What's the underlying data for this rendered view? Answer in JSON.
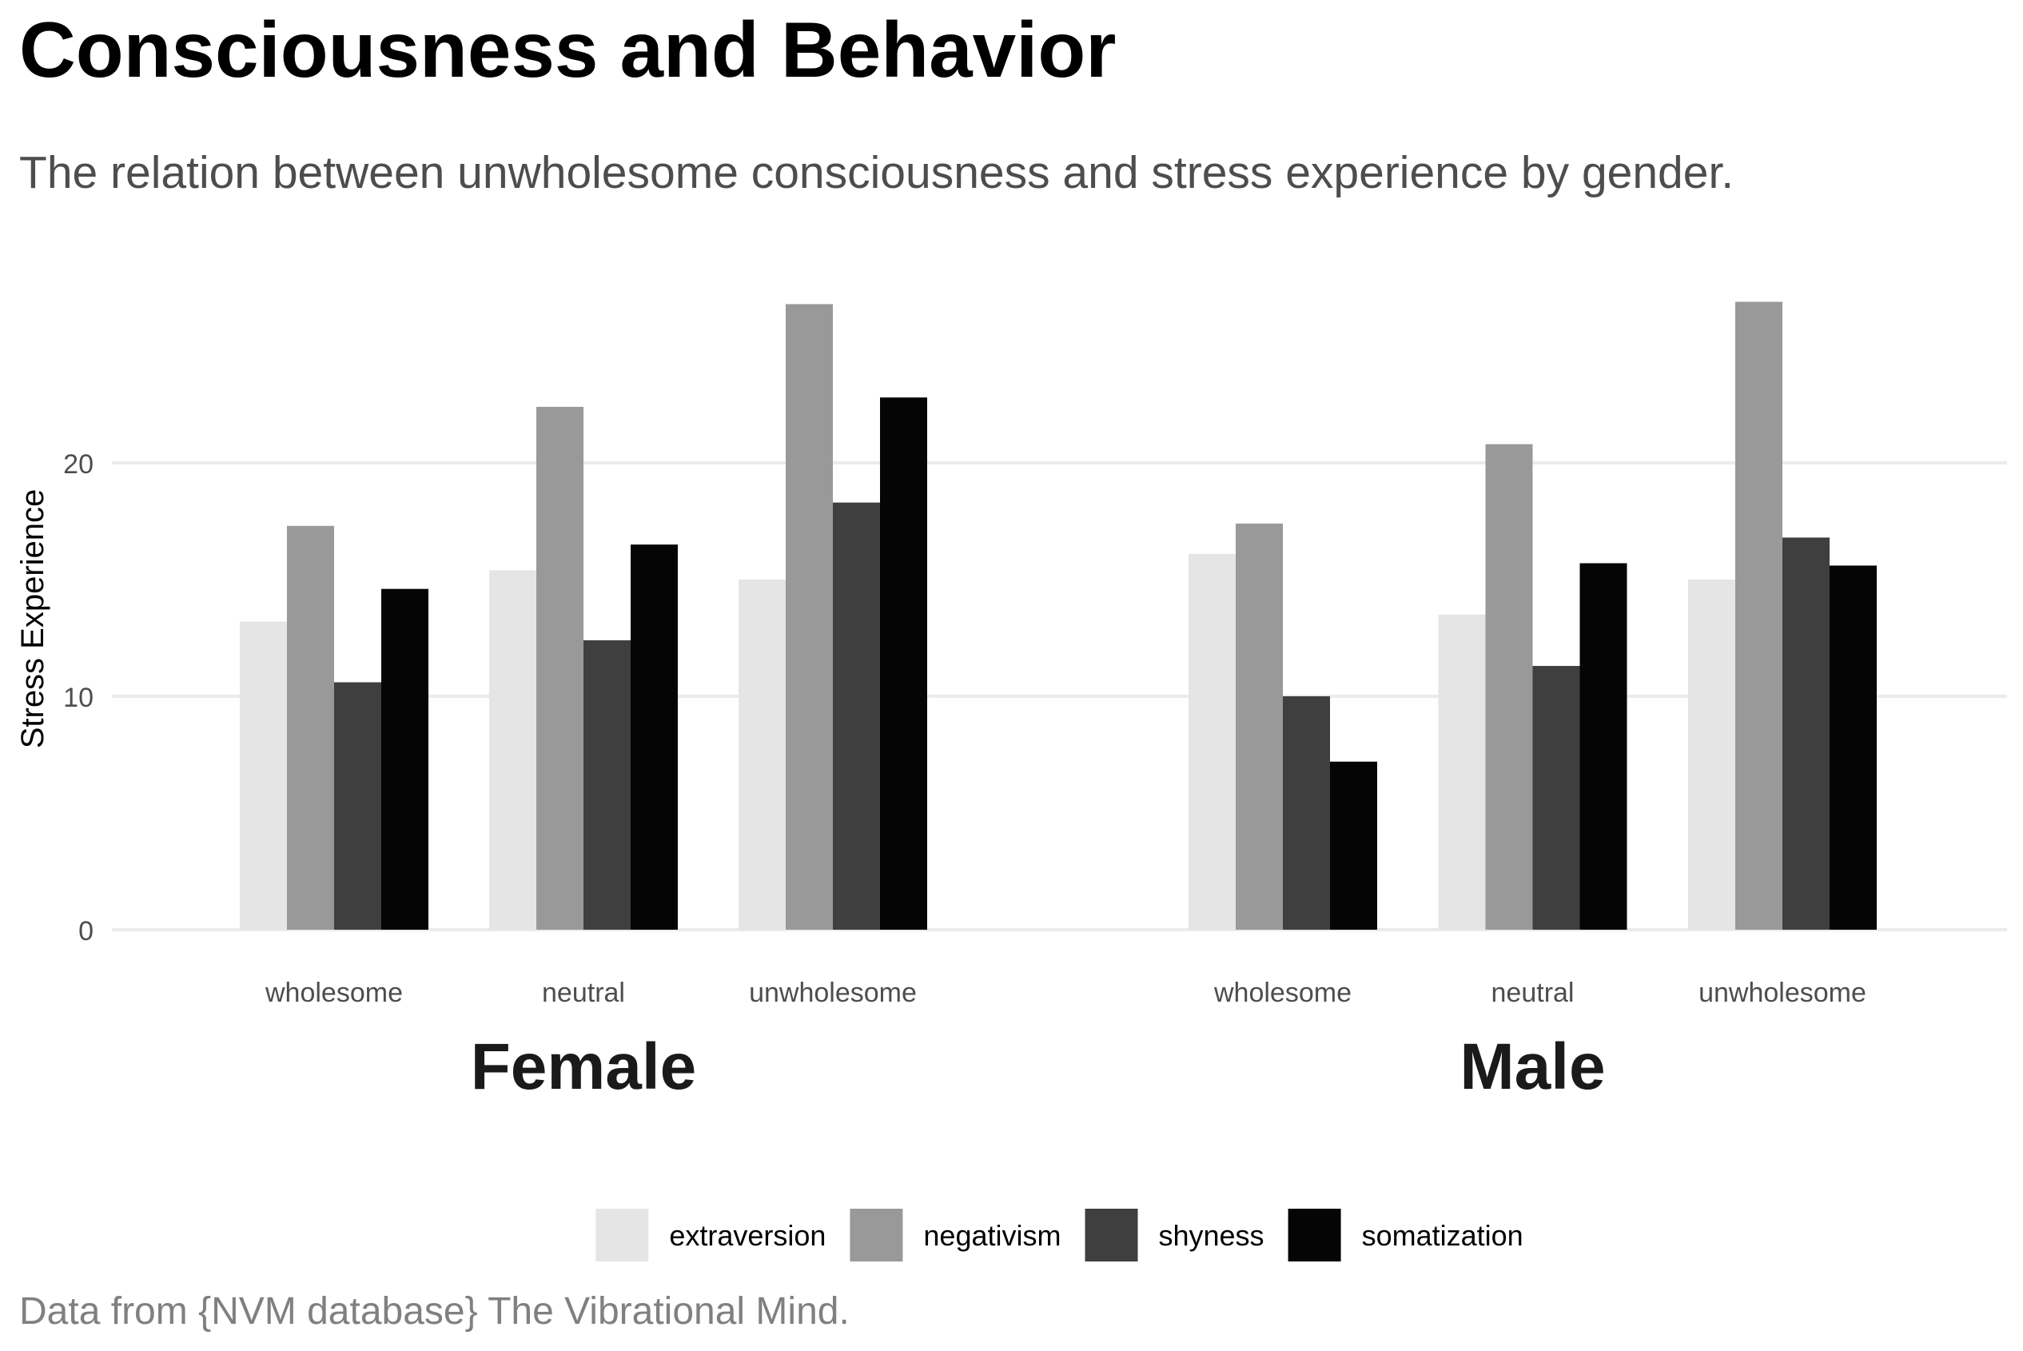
{
  "chart_data": {
    "type": "bar",
    "title": "Consciousness and Behavior",
    "subtitle": "The relation between unwholesome consciousness and stress experience by gender.",
    "caption": "Data from {NVM database} The Vibrational Mind.",
    "ylabel": "Stress Experience",
    "xlabel": "",
    "ylim": [
      0,
      28
    ],
    "y_ticks": [
      0,
      10,
      20
    ],
    "grid": true,
    "legend_position": "bottom",
    "categories": [
      "wholesome",
      "neutral",
      "unwholesome"
    ],
    "series": [
      {
        "name": "extraversion",
        "color": "#e5e5e5"
      },
      {
        "name": "negativism",
        "color": "#999999"
      },
      {
        "name": "shyness",
        "color": "#3f3f3f"
      },
      {
        "name": "somatization",
        "color": "#050505"
      }
    ],
    "panels": [
      {
        "label": "Female",
        "values": {
          "extraversion": [
            13.2,
            15.4,
            15.0
          ],
          "negativism": [
            17.3,
            22.4,
            26.8
          ],
          "shyness": [
            10.6,
            12.4,
            18.3
          ],
          "somatization": [
            14.6,
            16.5,
            22.8
          ]
        }
      },
      {
        "label": "Male",
        "values": {
          "extraversion": [
            16.1,
            13.5,
            15.0
          ],
          "negativism": [
            17.4,
            20.8,
            26.9
          ],
          "shyness": [
            10.0,
            11.3,
            16.8
          ],
          "somatization": [
            7.2,
            15.7,
            15.6
          ]
        }
      }
    ]
  }
}
